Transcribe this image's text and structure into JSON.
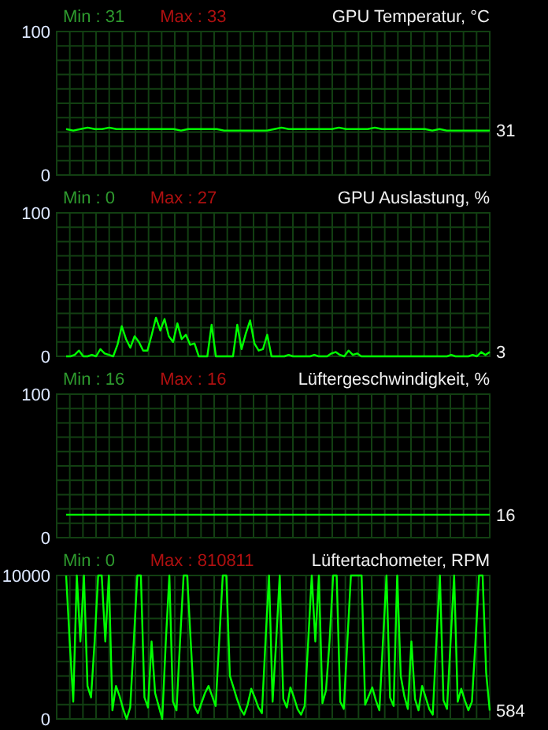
{
  "chart_data": [
    {
      "type": "line",
      "title": "GPU Temperatur, °C",
      "annotations": [
        "Min : 31",
        "Max : 33",
        "31"
      ],
      "categories": [
        null,
        null,
        null,
        null,
        null,
        null,
        null,
        null,
        null,
        null,
        null,
        null,
        null,
        null,
        null,
        null,
        null,
        null,
        null,
        null,
        null,
        null,
        null,
        null,
        null,
        null,
        null,
        null,
        null,
        null,
        null,
        null,
        null,
        null,
        null,
        null,
        null,
        null,
        null,
        null,
        null,
        null,
        null,
        null,
        null,
        null,
        null,
        null,
        null,
        null,
        null,
        null,
        null,
        null,
        null,
        null,
        null,
        null,
        null,
        null
      ],
      "series": [
        {
          "color": "#00ff00",
          "values": [
            32,
            31,
            32,
            33,
            32,
            32,
            33,
            32,
            32,
            32,
            32,
            32,
            32,
            32,
            32,
            32,
            31,
            32,
            32,
            32,
            32,
            32,
            31,
            31,
            31,
            31,
            31,
            31,
            31,
            32,
            33,
            32,
            32,
            32,
            32,
            32,
            32,
            32,
            33,
            32,
            32,
            32,
            32,
            33,
            32,
            32,
            32,
            32,
            32,
            32,
            32,
            31,
            32,
            31,
            31,
            31,
            31,
            31,
            31,
            31
          ]
        }
      ],
      "ylim": [
        0,
        100
      ],
      "yticks": [
        0,
        {
          "value": 10,
          "label": null
        },
        {
          "value": 20,
          "label": null
        },
        {
          "value": 30,
          "label": null
        },
        {
          "value": 40,
          "label": null
        },
        {
          "value": 50,
          "label": null
        },
        {
          "value": 60,
          "label": null
        },
        {
          "value": 70,
          "label": null
        },
        {
          "value": 80,
          "label": null
        },
        {
          "value": 90,
          "label": null
        },
        100
      ],
      "grid": true,
      "tick_labels": "y"
    },
    {
      "type": "line",
      "title": "GPU Auslastung, %",
      "annotations": [
        "Min : 0",
        "Max : 27",
        "3"
      ],
      "categories": [
        null,
        null,
        null,
        null,
        null,
        null,
        null,
        null,
        null,
        null,
        null,
        null,
        null,
        null,
        null,
        null,
        null,
        null,
        null,
        null,
        null,
        null,
        null,
        null,
        null,
        null,
        null,
        null,
        null,
        null,
        null,
        null,
        null,
        null,
        null,
        null,
        null,
        null,
        null,
        null,
        null,
        null,
        null,
        null,
        null,
        null,
        null,
        null,
        null,
        null,
        null,
        null,
        null,
        null,
        null,
        null,
        null,
        null,
        null,
        null,
        null,
        null,
        null,
        null,
        null,
        null,
        null,
        null,
        null,
        null,
        null,
        null,
        null,
        null,
        null,
        null,
        null,
        null,
        null,
        null,
        null,
        null,
        null,
        null,
        null,
        null,
        null,
        null,
        null,
        null,
        null,
        null,
        null,
        null,
        null,
        null,
        null,
        null,
        null,
        null
      ],
      "series": [
        {
          "color": "#00ff00",
          "values": [
            0,
            0,
            1,
            4,
            0,
            0,
            1,
            0,
            5,
            2,
            1,
            0,
            8,
            21,
            12,
            6,
            14,
            10,
            4,
            4,
            15,
            27,
            18,
            26,
            14,
            10,
            23,
            12,
            15,
            8,
            9,
            0,
            0,
            0,
            22,
            0,
            0,
            0,
            0,
            0,
            22,
            5,
            16,
            25,
            9,
            4,
            5,
            15,
            0,
            0,
            0,
            0,
            1,
            0,
            0,
            0,
            0,
            0,
            1,
            0,
            0,
            0,
            2,
            3,
            1,
            0,
            4,
            1,
            2,
            0,
            0,
            0,
            0,
            0,
            0,
            0,
            0,
            0,
            0,
            0,
            0,
            0,
            0,
            0,
            0,
            0,
            0,
            0,
            0,
            0,
            1,
            0,
            0,
            0,
            0,
            1,
            0,
            3,
            1,
            3
          ]
        }
      ],
      "ylim": [
        0,
        100
      ],
      "yticks": [
        0,
        {
          "value": 10,
          "label": null
        },
        {
          "value": 20,
          "label": null
        },
        {
          "value": 30,
          "label": null
        },
        {
          "value": 40,
          "label": null
        },
        {
          "value": 50,
          "label": null
        },
        {
          "value": 60,
          "label": null
        },
        {
          "value": 70,
          "label": null
        },
        {
          "value": 80,
          "label": null
        },
        {
          "value": 90,
          "label": null
        },
        100
      ],
      "grid": true,
      "tick_labels": "y"
    },
    {
      "type": "line",
      "title": "Lüftergeschwindigkeit, %",
      "annotations": [
        "Min : 16",
        "Max : 16",
        "16"
      ],
      "categories": [
        null,
        null,
        null,
        null,
        null,
        null,
        null,
        null,
        null,
        null
      ],
      "series": [
        {
          "color": "#00ff00",
          "values": [
            16,
            16,
            16,
            16,
            16,
            16,
            16,
            16,
            16,
            16
          ]
        }
      ],
      "ylim": [
        0,
        100
      ],
      "yticks": [
        0,
        {
          "value": 10,
          "label": null
        },
        {
          "value": 20,
          "label": null
        },
        {
          "value": 30,
          "label": null
        },
        {
          "value": 40,
          "label": null
        },
        {
          "value": 50,
          "label": null
        },
        {
          "value": 60,
          "label": null
        },
        {
          "value": 70,
          "label": null
        },
        {
          "value": 80,
          "label": null
        },
        {
          "value": 90,
          "label": null
        },
        100
      ],
      "grid": true,
      "tick_labels": "y"
    },
    {
      "type": "line",
      "title": "Lüftertachometer, RPM",
      "annotations": [
        "Min : 0",
        "Max : 810811",
        "584"
      ],
      "categories": [
        null,
        null,
        null,
        null,
        null,
        null,
        null,
        null,
        null,
        null,
        null,
        null,
        null,
        null,
        null,
        null,
        null,
        null,
        null,
        null,
        null,
        null,
        null,
        null,
        null,
        null,
        null,
        null,
        null,
        null,
        null,
        null,
        null,
        null,
        null,
        null,
        null,
        null,
        null,
        null,
        null,
        null,
        null,
        null,
        null,
        null,
        null,
        null,
        null,
        null,
        null,
        null,
        null,
        null,
        null,
        null,
        null,
        null,
        null,
        null,
        null,
        null,
        null,
        null,
        null,
        null,
        null,
        null,
        null,
        null,
        null,
        null,
        null,
        null,
        null,
        null,
        null,
        null,
        null,
        null,
        null,
        null,
        null,
        null,
        null,
        null,
        null,
        null,
        null,
        null,
        null,
        null,
        null,
        null,
        null,
        null,
        null,
        null,
        null,
        null,
        null,
        null,
        null,
        null,
        null,
        null,
        null,
        null,
        null,
        null,
        null,
        null,
        null,
        null,
        null,
        null,
        null,
        null,
        null,
        null
      ],
      "series": [
        {
          "color": "#00ff00",
          "values": [
            10000,
            5400,
            1200,
            10000,
            5400,
            10000,
            2300,
            1500,
            5400,
            10000,
            10000,
            5400,
            10000,
            600,
            2300,
            1600,
            700,
            0,
            800,
            5400,
            10000,
            10000,
            1500,
            800,
            5400,
            1800,
            900,
            0,
            5400,
            10000,
            1200,
            600,
            5400,
            10000,
            10000,
            5400,
            900,
            400,
            1100,
            1800,
            2300,
            1600,
            900,
            5400,
            10000,
            10000,
            3000,
            2200,
            1400,
            700,
            300,
            1000,
            2100,
            1500,
            800,
            400,
            5400,
            10000,
            1200,
            5400,
            10000,
            1400,
            800,
            2200,
            1500,
            700,
            300,
            900,
            5400,
            10000,
            5400,
            10000,
            1100,
            2000,
            5400,
            10000,
            10000,
            1200,
            700,
            5400,
            10000,
            10000,
            10000,
            10000,
            1000,
            1600,
            2200,
            1300,
            600,
            5400,
            10000,
            1500,
            900,
            10000,
            3000,
            1600,
            700,
            5400,
            1400,
            600,
            2300,
            1500,
            700,
            300,
            5400,
            10000,
            1300,
            700,
            5400,
            10000,
            1200,
            2100,
            1300,
            600,
            1200,
            5400,
            10000,
            10000,
            3200,
            584
          ]
        }
      ],
      "ylim": [
        0,
        10000
      ],
      "yticks": [
        0,
        {
          "value": 1000,
          "label": null
        },
        {
          "value": 2000,
          "label": null
        },
        {
          "value": 3000,
          "label": null
        },
        {
          "value": 4000,
          "label": null
        },
        {
          "value": 5000,
          "label": null
        },
        {
          "value": 6000,
          "label": null
        },
        {
          "value": 7000,
          "label": null
        },
        {
          "value": 8000,
          "label": null
        },
        {
          "value": 9000,
          "label": null
        },
        10000
      ],
      "grid": true,
      "tick_labels": "y"
    }
  ]
}
